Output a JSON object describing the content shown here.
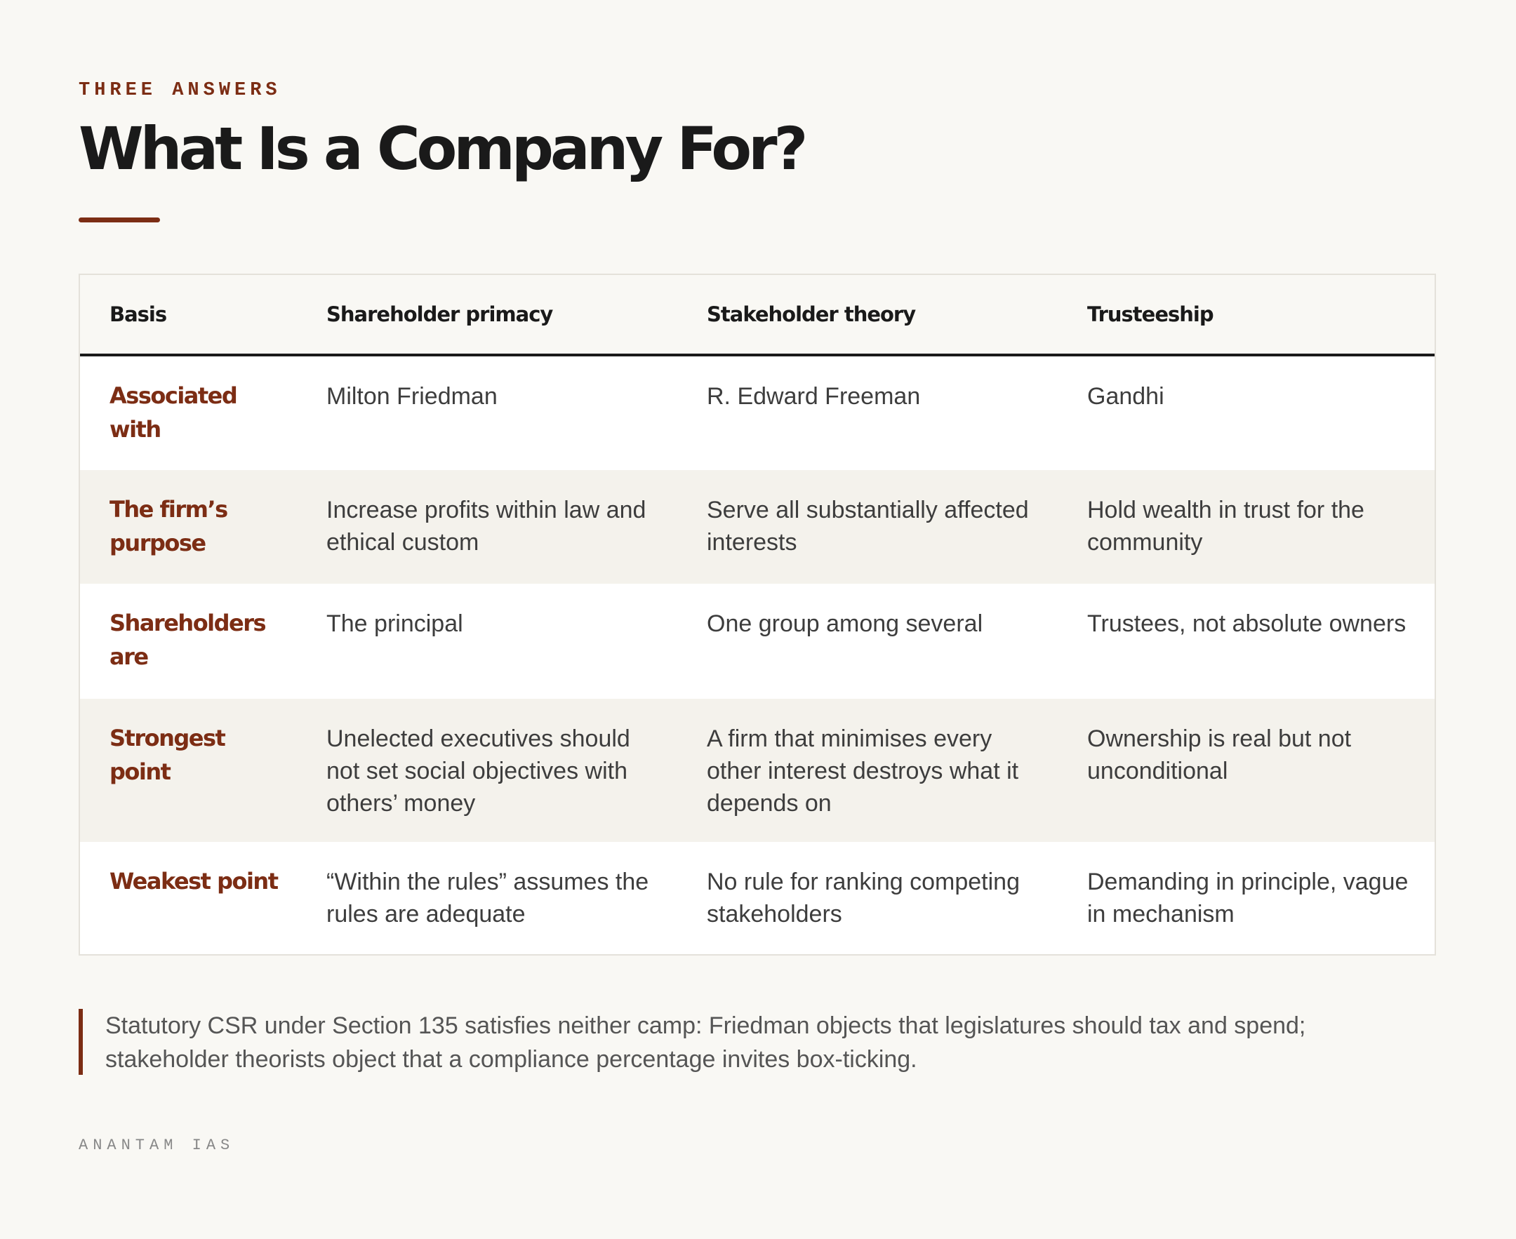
{
  "header": {
    "eyebrow": "THREE ANSWERS",
    "title": "What Is a Company For?"
  },
  "table": {
    "columns": [
      "Basis",
      "Shareholder primacy",
      "Stakeholder theory",
      "Trusteeship"
    ],
    "rows": [
      {
        "basis": "Associated with",
        "values": [
          "Milton Friedman",
          "R. Edward Freeman",
          "Gandhi"
        ]
      },
      {
        "basis": "The firm’s purpose",
        "values": [
          "Increase profits within law and ethical custom",
          "Serve all substantially affected interests",
          "Hold wealth in trust for the community"
        ]
      },
      {
        "basis": "Shareholders are",
        "values": [
          "The principal",
          "One group among several",
          "Trustees, not absolute owners"
        ]
      },
      {
        "basis": "Strongest point",
        "values": [
          "Unelected executives should not set social objectives with others’ money",
          "A firm that minimises every other interest destroys what it depends on",
          "Ownership is real but not unconditional"
        ]
      },
      {
        "basis": "Weakest point",
        "values": [
          "“Within the rules” assumes the rules are adequate",
          "No rule for ranking competing stakeholders",
          "Demanding in principle, vague in mechanism"
        ]
      }
    ]
  },
  "note": "Statutory CSR under Section 135 satisfies neither camp: Friedman objects that legislatures should tax and spend; stakeholder theorists object that a compliance percentage invites box-ticking.",
  "footer": "ANANTAM IAS",
  "colors": {
    "accent": "#7c2d14",
    "text": "#1a1a1a",
    "background": "#f9f8f4",
    "row_tint": "#f4f2ec"
  }
}
